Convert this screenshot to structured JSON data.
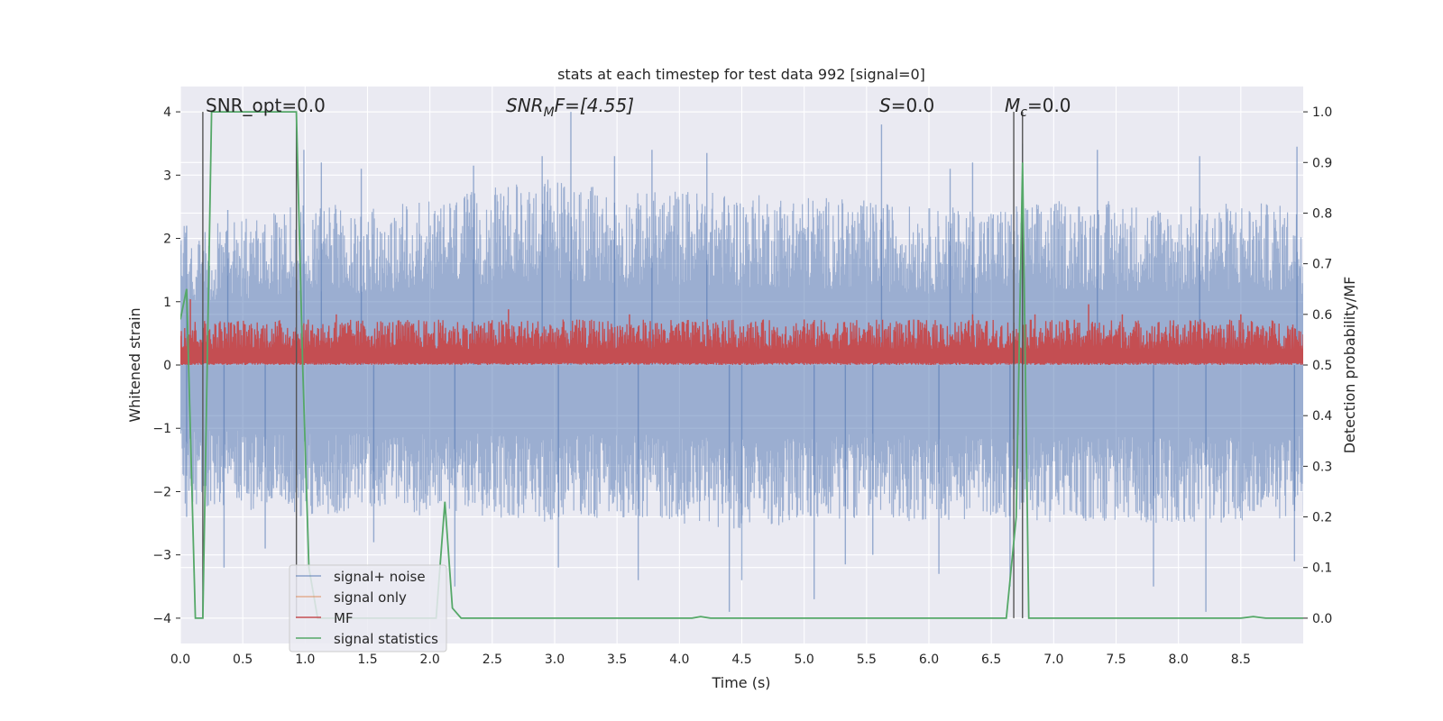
{
  "chart_data": {
    "type": "line",
    "title": "stats at each timestep for test data 992 [signal=0]",
    "xlabel": "Time (s)",
    "ylabel_left": "Whitened strain",
    "ylabel_right": "Detection probability/MF",
    "xlim": [
      0.0,
      9.0
    ],
    "ylim_left": [
      -4.4,
      4.4
    ],
    "ylim_right": [
      -0.05,
      1.05
    ],
    "xticks": [
      "0.0",
      "0.5",
      "1.0",
      "1.5",
      "2.0",
      "2.5",
      "3.0",
      "3.5",
      "4.0",
      "4.5",
      "5.0",
      "5.5",
      "6.0",
      "6.5",
      "7.0",
      "7.5",
      "8.0",
      "8.5"
    ],
    "yticks_left": [
      "4",
      "3",
      "2",
      "1",
      "0",
      "−1",
      "−2",
      "−3",
      "−4"
    ],
    "yticks_left_values": [
      4,
      3,
      2,
      1,
      0,
      -1,
      -2,
      -3,
      -4
    ],
    "yticks_right": [
      "1.0",
      "0.9",
      "0.8",
      "0.7",
      "0.6",
      "0.5",
      "0.4",
      "0.3",
      "0.2",
      "0.1",
      "0.0"
    ],
    "yticks_right_values": [
      1.0,
      0.9,
      0.8,
      0.7,
      0.6,
      0.5,
      0.4,
      0.3,
      0.2,
      0.1,
      0.0
    ],
    "grid": true,
    "legend_position": "lower-left",
    "annotations": {
      "snr_opt": "SNR_opt=0.0",
      "snr_mf_prefix": "SNR",
      "snr_mf_sub": "M",
      "snr_mf_rest": "F=[4.55]",
      "s_var": "S",
      "s_rest": "=0.0",
      "mc_var": "M",
      "mc_sub": "c",
      "mc_rest": "=0.0"
    },
    "vlines_x": [
      0.18,
      0.93,
      6.68,
      6.75
    ],
    "series": [
      {
        "name": "signal+ noise",
        "color": "#4c72b0",
        "axis": "left",
        "envelope_upper": [
          [
            0.0,
            2.2
          ],
          [
            0.5,
            2.3
          ],
          [
            1.0,
            2.6
          ],
          [
            1.5,
            2.5
          ],
          [
            2.0,
            2.6
          ],
          [
            2.5,
            2.8
          ],
          [
            3.0,
            3.0
          ],
          [
            3.5,
            2.7
          ],
          [
            4.0,
            2.8
          ],
          [
            4.5,
            2.7
          ],
          [
            5.0,
            2.7
          ],
          [
            5.5,
            2.6
          ],
          [
            6.0,
            2.5
          ],
          [
            6.5,
            2.5
          ],
          [
            7.0,
            2.6
          ],
          [
            7.5,
            2.6
          ],
          [
            8.0,
            2.5
          ],
          [
            8.5,
            2.6
          ],
          [
            9.0,
            2.5
          ]
        ],
        "envelope_lower": [
          [
            0.0,
            -2.2
          ],
          [
            0.5,
            -2.3
          ],
          [
            1.0,
            -2.4
          ],
          [
            1.5,
            -2.3
          ],
          [
            2.0,
            -2.4
          ],
          [
            2.5,
            -2.4
          ],
          [
            3.0,
            -2.5
          ],
          [
            3.5,
            -2.4
          ],
          [
            4.0,
            -2.5
          ],
          [
            4.5,
            -2.6
          ],
          [
            5.0,
            -2.5
          ],
          [
            5.5,
            -2.4
          ],
          [
            6.0,
            -2.5
          ],
          [
            6.5,
            -2.4
          ],
          [
            7.0,
            -2.5
          ],
          [
            7.5,
            -2.5
          ],
          [
            8.0,
            -2.5
          ],
          [
            8.5,
            -2.5
          ],
          [
            9.0,
            -2.4
          ]
        ],
        "peaks": [
          [
            0.05,
            2.2
          ],
          [
            0.38,
            2.45
          ],
          [
            0.99,
            3.4
          ],
          [
            1.13,
            3.2
          ],
          [
            1.45,
            3.1
          ],
          [
            2.35,
            3.15
          ],
          [
            2.9,
            3.3
          ],
          [
            3.13,
            4.0
          ],
          [
            3.48,
            3.3
          ],
          [
            3.78,
            3.4
          ],
          [
            4.22,
            3.35
          ],
          [
            5.62,
            3.8
          ],
          [
            6.17,
            3.1
          ],
          [
            6.35,
            3.2
          ],
          [
            6.75,
            3.5
          ],
          [
            7.35,
            3.4
          ],
          [
            8.17,
            3.3
          ],
          [
            8.95,
            3.45
          ]
        ],
        "troughs": [
          [
            0.05,
            -2.4
          ],
          [
            0.35,
            -3.2
          ],
          [
            0.68,
            -2.9
          ],
          [
            1.55,
            -2.8
          ],
          [
            2.2,
            -3.5
          ],
          [
            3.03,
            -3.2
          ],
          [
            3.67,
            -3.4
          ],
          [
            4.4,
            -3.9
          ],
          [
            4.5,
            -3.4
          ],
          [
            5.08,
            -3.7
          ],
          [
            5.33,
            -3.15
          ],
          [
            5.55,
            -3.0
          ],
          [
            6.08,
            -3.3
          ],
          [
            6.65,
            -3.5
          ],
          [
            7.8,
            -3.5
          ],
          [
            8.22,
            -3.9
          ],
          [
            8.93,
            -3.1
          ]
        ]
      },
      {
        "name": "signal only",
        "color": "#dd8452",
        "axis": "left",
        "values": []
      },
      {
        "name": "MF",
        "color": "#c44e52",
        "axis": "right",
        "baseline": 0.5,
        "band_upper": 0.59,
        "peaks": [
          [
            0.08,
            0.63
          ],
          [
            1.25,
            0.6
          ],
          [
            2.63,
            0.61
          ],
          [
            3.6,
            0.6
          ],
          [
            5.0,
            0.59
          ],
          [
            6.35,
            0.6
          ],
          [
            6.85,
            0.6
          ],
          [
            7.28,
            0.62
          ],
          [
            7.55,
            0.6
          ],
          [
            8.5,
            0.6
          ]
        ]
      },
      {
        "name": "signal statistics",
        "color": "#55a868",
        "axis": "right",
        "points": [
          [
            0.0,
            0.59
          ],
          [
            0.05,
            0.65
          ],
          [
            0.12,
            0.0
          ],
          [
            0.18,
            0.0
          ],
          [
            0.25,
            1.0
          ],
          [
            0.93,
            1.0
          ],
          [
            0.98,
            0.5
          ],
          [
            1.03,
            0.1
          ],
          [
            1.1,
            0.0
          ],
          [
            2.05,
            0.0
          ],
          [
            2.12,
            0.23
          ],
          [
            2.18,
            0.02
          ],
          [
            2.25,
            0.0
          ],
          [
            4.1,
            0.0
          ],
          [
            4.17,
            0.003
          ],
          [
            4.25,
            0.0
          ],
          [
            6.62,
            0.0
          ],
          [
            6.7,
            0.2
          ],
          [
            6.75,
            0.9
          ],
          [
            6.8,
            0.0
          ],
          [
            8.5,
            0.0
          ],
          [
            8.6,
            0.003
          ],
          [
            8.7,
            0.0
          ],
          [
            9.0,
            0.0
          ]
        ]
      }
    ]
  }
}
